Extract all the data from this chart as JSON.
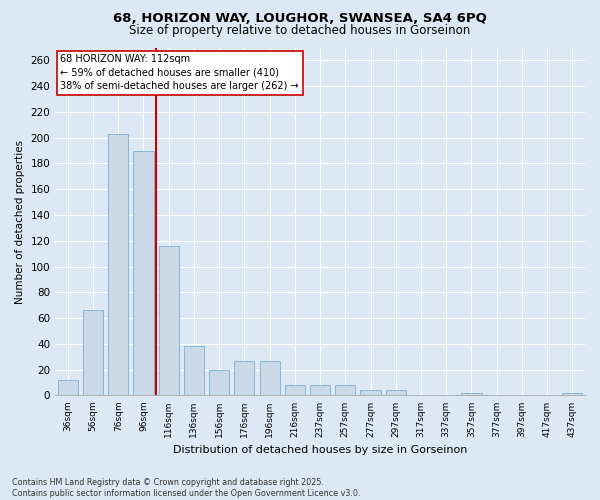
{
  "title_line1": "68, HORIZON WAY, LOUGHOR, SWANSEA, SA4 6PQ",
  "title_line2": "Size of property relative to detached houses in Gorseinon",
  "xlabel": "Distribution of detached houses by size in Gorseinon",
  "ylabel": "Number of detached properties",
  "bar_color": "#c9d9e8",
  "bar_edge_color": "#7bafd4",
  "categories": [
    "36sqm",
    "56sqm",
    "76sqm",
    "96sqm",
    "116sqm",
    "136sqm",
    "156sqm",
    "176sqm",
    "196sqm",
    "216sqm",
    "237sqm",
    "257sqm",
    "277sqm",
    "297sqm",
    "317sqm",
    "337sqm",
    "357sqm",
    "377sqm",
    "397sqm",
    "417sqm",
    "437sqm"
  ],
  "values": [
    12,
    66,
    203,
    190,
    116,
    38,
    20,
    27,
    27,
    8,
    8,
    8,
    4,
    4,
    0,
    0,
    2,
    0,
    0,
    0,
    2
  ],
  "ylim": [
    0,
    270
  ],
  "yticks": [
    0,
    20,
    40,
    60,
    80,
    100,
    120,
    140,
    160,
    180,
    200,
    220,
    240,
    260
  ],
  "annotation_text": "68 HORIZON WAY: 112sqm\n← 59% of detached houses are smaller (410)\n38% of semi-detached houses are larger (262) →",
  "annotation_box_color": "#ffffff",
  "annotation_box_edge": "#cc0000",
  "vline_color": "#cc0000",
  "footer_line1": "Contains HM Land Registry data © Crown copyright and database right 2025.",
  "footer_line2": "Contains public sector information licensed under the Open Government Licence v3.0.",
  "background_color": "#dce9f5",
  "plot_bg_color": "#dce9f5"
}
